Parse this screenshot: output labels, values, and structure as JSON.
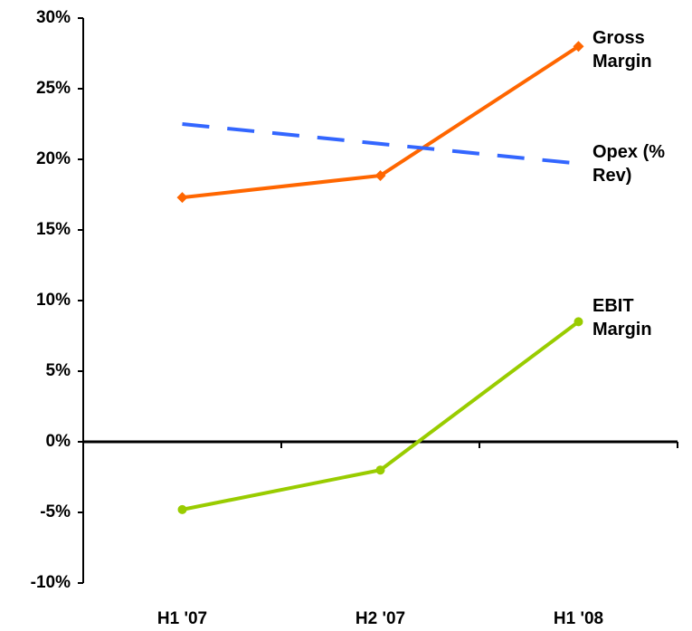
{
  "chart_data": {
    "type": "line",
    "categories": [
      "H1 '07",
      "H2 '07",
      "H1 '08"
    ],
    "series": [
      {
        "name": "Gross Margin",
        "color": "#ff6600",
        "values": [
          17.3,
          18.85,
          28.0
        ],
        "marker": "diamond"
      },
      {
        "name": "Opex (% Rev)",
        "color": "#3366ff",
        "values": [
          22.5,
          21.1,
          19.7
        ],
        "dashed": true
      },
      {
        "name": "EBIT Margin",
        "color": "#99cc00",
        "values": [
          -4.8,
          -2.0,
          8.5
        ],
        "marker": "circle"
      }
    ],
    "ylim": [
      -10,
      30
    ],
    "yticks": [
      {
        "value": -10,
        "label": "-10%"
      },
      {
        "value": -5,
        "label": "-5%"
      },
      {
        "value": 0,
        "label": "0%"
      },
      {
        "value": 5,
        "label": "5%"
      },
      {
        "value": 10,
        "label": "10%"
      },
      {
        "value": 15,
        "label": "15%"
      },
      {
        "value": 20,
        "label": "20%"
      },
      {
        "value": 25,
        "label": "25%"
      },
      {
        "value": 30,
        "label": "30%"
      }
    ],
    "grid": false
  }
}
